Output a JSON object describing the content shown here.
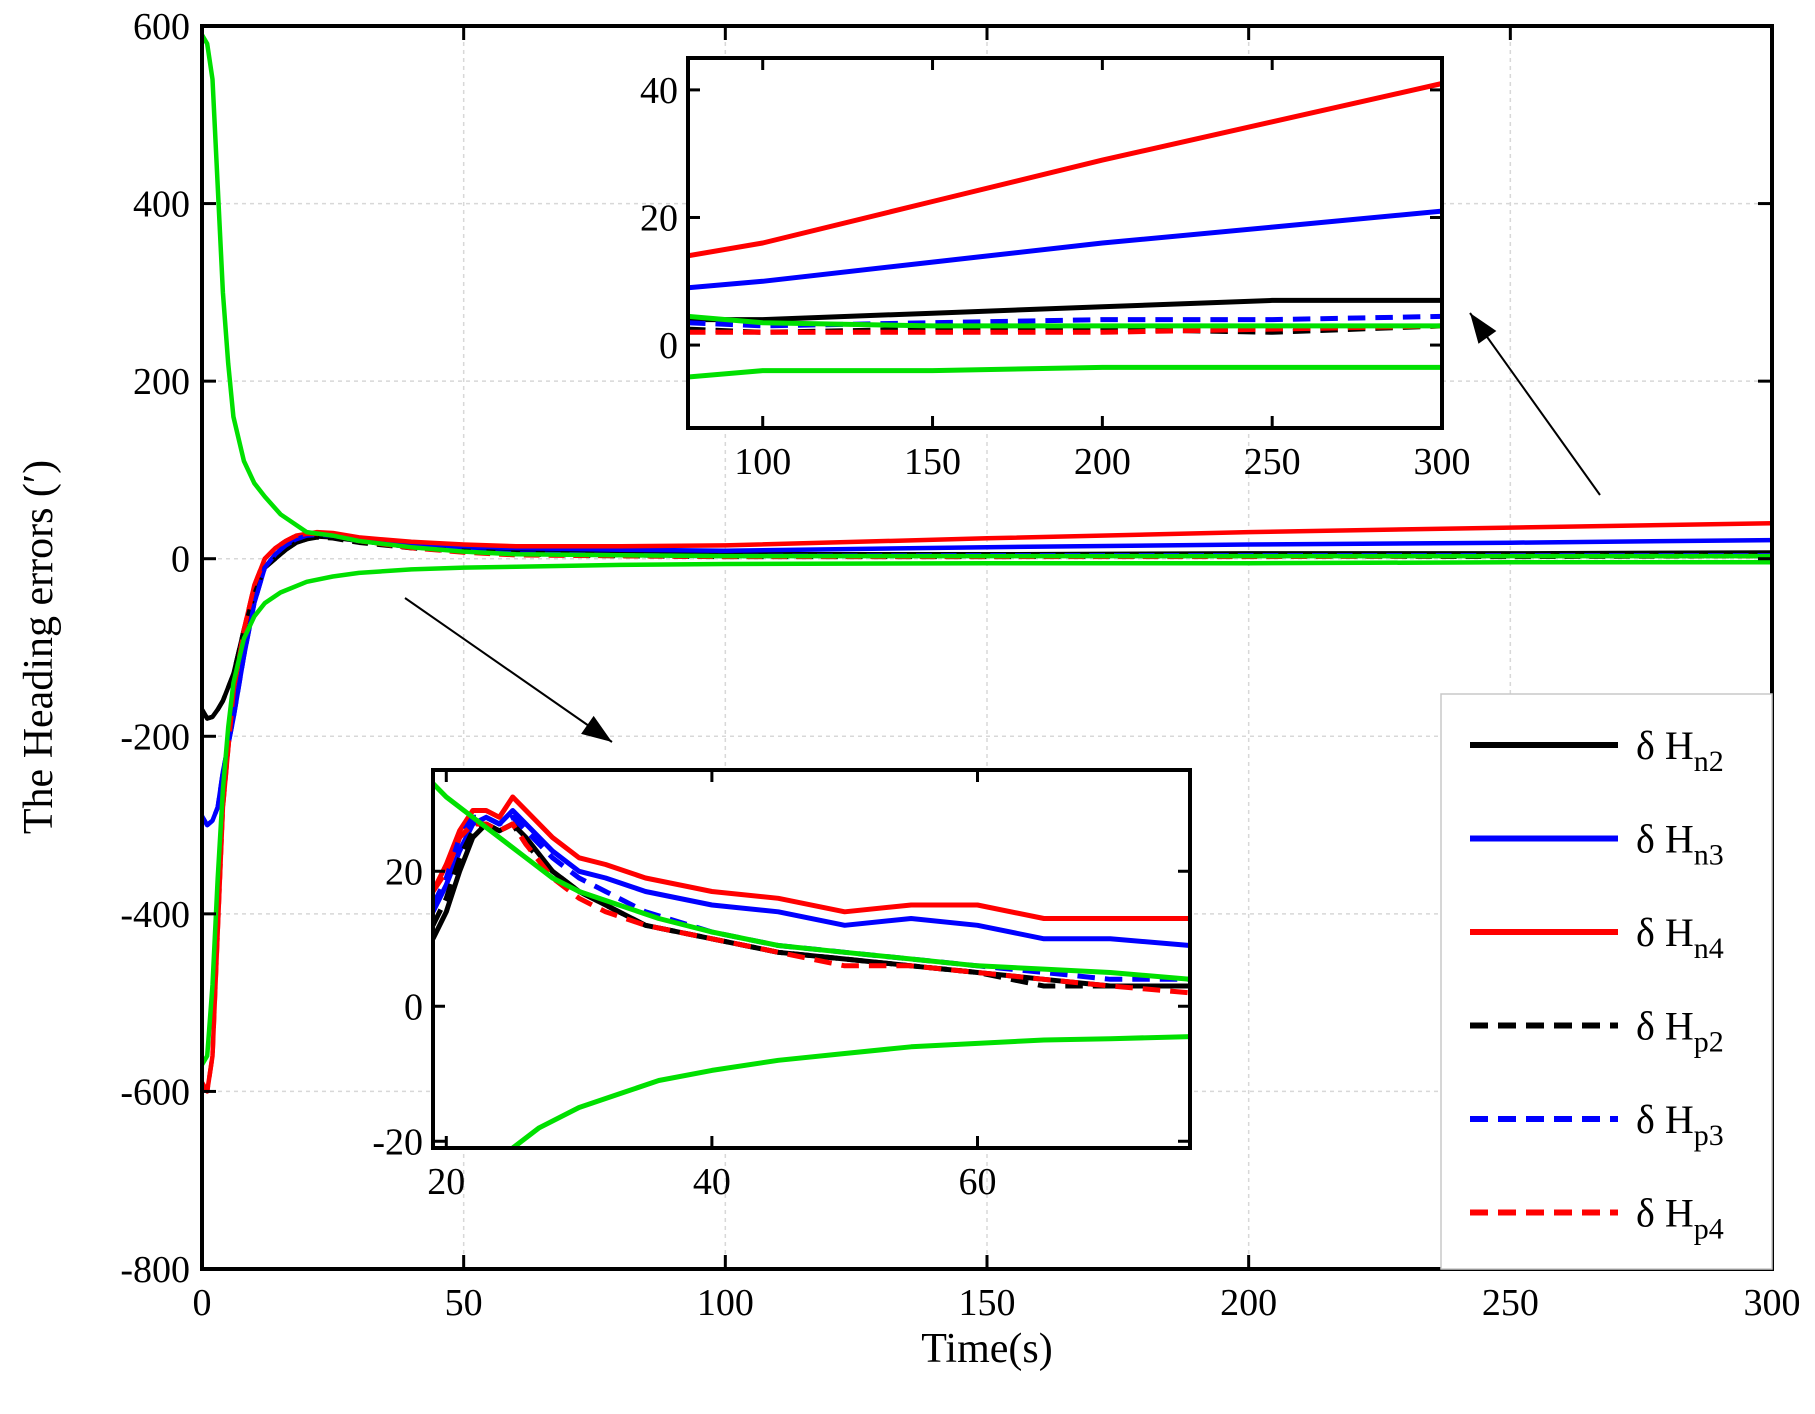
{
  "chart_data": [
    {
      "type": "line",
      "xlabel": "Time(s)",
      "ylabel": "The Heading errors (′)",
      "xlim": [
        0,
        300
      ],
      "ylim": [
        -800,
        600
      ],
      "xticks": [
        0,
        50,
        100,
        150,
        200,
        250,
        300
      ],
      "yticks": [
        -800,
        -600,
        -400,
        -200,
        0,
        200,
        400,
        600
      ],
      "grid": true,
      "legend_position": "bottom-right",
      "series": [
        {
          "name": "n2",
          "color": "#000000",
          "dash": "solid",
          "x": [
            0,
            1,
            2,
            3,
            4,
            6,
            8,
            10,
            12,
            14,
            16,
            18,
            20,
            22,
            25,
            30,
            40,
            50,
            60,
            80,
            100,
            150,
            200,
            250,
            300
          ],
          "y": [
            -170,
            -180,
            -178,
            -170,
            -160,
            -130,
            -80,
            -40,
            -10,
            0,
            10,
            18,
            22,
            25,
            24,
            20,
            15,
            12,
            8,
            6,
            5,
            5,
            6,
            6,
            7
          ]
        },
        {
          "name": "n3",
          "color": "#0000ff",
          "dash": "solid",
          "x": [
            0,
            1,
            2,
            3,
            4,
            6,
            8,
            10,
            12,
            14,
            16,
            18,
            20,
            22,
            25,
            30,
            40,
            50,
            60,
            80,
            100,
            150,
            200,
            250,
            300
          ],
          "y": [
            -290,
            -300,
            -295,
            -280,
            -240,
            -180,
            -110,
            -50,
            -10,
            5,
            15,
            22,
            26,
            28,
            27,
            22,
            17,
            14,
            12,
            10,
            9,
            13,
            16,
            18,
            21
          ]
        },
        {
          "name": "n4",
          "color": "#ff0000",
          "dash": "solid",
          "x": [
            0,
            1,
            2,
            3,
            4,
            6,
            8,
            10,
            12,
            14,
            16,
            18,
            20,
            22,
            25,
            30,
            40,
            50,
            60,
            80,
            100,
            150,
            200,
            250,
            300
          ],
          "y": [
            -590,
            -600,
            -560,
            -420,
            -280,
            -150,
            -80,
            -30,
            0,
            12,
            20,
            26,
            28,
            30,
            29,
            24,
            19,
            16,
            14,
            14,
            15,
            23,
            30,
            35,
            40
          ]
        },
        {
          "name": "p2",
          "color": "#000000",
          "dash": "dashed",
          "x": [
            0,
            1,
            2,
            3,
            4,
            6,
            8,
            10,
            12,
            14,
            16,
            18,
            20,
            22,
            25,
            30,
            40,
            50,
            60,
            80,
            100,
            150,
            200,
            250,
            300
          ],
          "y": [
            -170,
            -180,
            -178,
            -170,
            -160,
            -130,
            -80,
            -40,
            -10,
            0,
            10,
            18,
            22,
            24,
            23,
            18,
            12,
            8,
            5,
            3,
            2,
            2,
            3,
            2,
            3
          ]
        },
        {
          "name": "p3",
          "color": "#0000ff",
          "dash": "dashed",
          "x": [
            0,
            1,
            2,
            3,
            4,
            6,
            8,
            10,
            12,
            14,
            16,
            18,
            20,
            22,
            25,
            30,
            40,
            50,
            60,
            80,
            100,
            150,
            200,
            250,
            300
          ],
          "y": [
            -290,
            -300,
            -295,
            -280,
            -240,
            -180,
            -110,
            -50,
            -10,
            5,
            15,
            22,
            26,
            27,
            26,
            20,
            13,
            9,
            6,
            4,
            3,
            4,
            4,
            4,
            4
          ]
        },
        {
          "name": "p4",
          "color": "#ff0000",
          "dash": "dashed",
          "x": [
            0,
            1,
            2,
            3,
            4,
            6,
            8,
            10,
            12,
            14,
            16,
            18,
            20,
            22,
            25,
            30,
            40,
            50,
            60,
            80,
            100,
            150,
            200,
            250,
            300
          ],
          "y": [
            -590,
            -600,
            -560,
            -420,
            -280,
            -150,
            -80,
            -30,
            0,
            12,
            20,
            26,
            28,
            28,
            27,
            20,
            12,
            7,
            4,
            3,
            2,
            2,
            2,
            3,
            3
          ]
        },
        {
          "color": "#00e000",
          "dash": "solid",
          "x": [
            0,
            1,
            2,
            3,
            4,
            5,
            6,
            8,
            10,
            12,
            15,
            20,
            25,
            30,
            40,
            50,
            60,
            80,
            100,
            150,
            200,
            250,
            300
          ],
          "y": [
            590,
            580,
            540,
            420,
            300,
            220,
            160,
            110,
            85,
            70,
            50,
            30,
            26,
            20,
            13,
            8,
            5,
            4,
            3,
            3,
            3,
            3,
            3
          ]
        },
        {
          "color": "#00e000",
          "dash": "solid",
          "x": [
            0,
            1,
            2,
            3,
            4,
            5,
            6,
            8,
            10,
            12,
            15,
            20,
            25,
            30,
            40,
            50,
            60,
            80,
            100,
            150,
            200,
            250,
            300
          ],
          "y": [
            -570,
            -560,
            -480,
            -360,
            -260,
            -190,
            -140,
            -90,
            -65,
            -50,
            -38,
            -26,
            -20,
            -16,
            -12,
            -10,
            -9,
            -7,
            -6,
            -5,
            -5,
            -4,
            -4
          ]
        }
      ],
      "annotations": [
        "arrow-to-top-inset",
        "arrow-to-bottom-inset"
      ]
    },
    {
      "type": "line",
      "name": "inset-late",
      "xlim": [
        78,
        300
      ],
      "ylim": [
        -13,
        45
      ],
      "xticks": [
        100,
        150,
        200,
        250,
        300
      ],
      "yticks": [
        0,
        20,
        40
      ],
      "series": [
        {
          "name": "n2",
          "color": "#000000",
          "dash": "solid",
          "x": [
            78,
            100,
            150,
            200,
            250,
            300
          ],
          "y": [
            4,
            4,
            5,
            6,
            7,
            7
          ]
        },
        {
          "name": "n3",
          "color": "#0000ff",
          "dash": "solid",
          "x": [
            78,
            100,
            150,
            200,
            250,
            300
          ],
          "y": [
            9,
            10,
            13,
            16,
            18.5,
            21
          ]
        },
        {
          "name": "n4",
          "color": "#ff0000",
          "dash": "solid",
          "x": [
            78,
            100,
            150,
            200,
            250,
            300
          ],
          "y": [
            14,
            16,
            22.5,
            29,
            35,
            41
          ]
        },
        {
          "name": "p2",
          "color": "#000000",
          "dash": "dashed",
          "x": [
            78,
            100,
            150,
            200,
            250,
            300
          ],
          "y": [
            2.5,
            2,
            2.5,
            2.5,
            2,
            3
          ]
        },
        {
          "name": "p3",
          "color": "#0000ff",
          "dash": "dashed",
          "x": [
            78,
            100,
            150,
            200,
            250,
            300
          ],
          "y": [
            3.5,
            3,
            3.5,
            4,
            4,
            4.5
          ]
        },
        {
          "name": "p4",
          "color": "#ff0000",
          "dash": "dashed",
          "x": [
            78,
            100,
            150,
            200,
            250,
            300
          ],
          "y": [
            2,
            2,
            2,
            2,
            2.5,
            3
          ]
        },
        {
          "color": "#00e000",
          "dash": "solid",
          "x": [
            78,
            100,
            150,
            200,
            250,
            300
          ],
          "y": [
            4.5,
            3.5,
            3,
            3,
            3,
            3
          ]
        },
        {
          "color": "#00e000",
          "dash": "solid",
          "x": [
            78,
            100,
            150,
            200,
            250,
            300
          ],
          "y": [
            -5,
            -4,
            -4,
            -3.5,
            -3.5,
            -3.5
          ]
        }
      ]
    },
    {
      "type": "line",
      "name": "inset-early",
      "xlim": [
        19,
        76
      ],
      "ylim": [
        -21,
        35
      ],
      "xticks": [
        20,
        40,
        60
      ],
      "yticks": [
        -20,
        0,
        20
      ],
      "series": [
        {
          "name": "n2",
          "color": "#000000",
          "dash": "solid",
          "x": [
            19,
            20,
            21,
            22,
            23,
            24,
            25,
            26,
            28,
            30,
            32,
            35,
            40,
            45,
            50,
            55,
            60,
            65,
            70,
            76
          ],
          "y": [
            10,
            14,
            20,
            25,
            27,
            26,
            27,
            25,
            20,
            17,
            15,
            12,
            10,
            8,
            7,
            6,
            5,
            4,
            3,
            3
          ]
        },
        {
          "name": "n3",
          "color": "#0000ff",
          "dash": "solid",
          "x": [
            19,
            20,
            21,
            22,
            23,
            24,
            25,
            26,
            28,
            30,
            32,
            35,
            40,
            45,
            50,
            55,
            60,
            65,
            70,
            76
          ],
          "y": [
            14,
            18,
            23,
            27,
            28,
            27,
            29,
            27,
            23,
            20,
            19,
            17,
            15,
            14,
            12,
            13,
            12,
            10,
            10,
            9
          ]
        },
        {
          "name": "n4",
          "color": "#ff0000",
          "dash": "solid",
          "x": [
            19,
            20,
            21,
            22,
            23,
            24,
            25,
            26,
            28,
            30,
            32,
            35,
            40,
            45,
            50,
            55,
            60,
            65,
            70,
            76
          ],
          "y": [
            17,
            21,
            26,
            29,
            29,
            28,
            31,
            29,
            25,
            22,
            21,
            19,
            17,
            16,
            14,
            15,
            15,
            13,
            13,
            13
          ]
        },
        {
          "name": "p2",
          "color": "#000000",
          "dash": "dashed",
          "x": [
            19,
            20,
            21,
            22,
            23,
            24,
            25,
            26,
            28,
            30,
            32,
            35,
            40,
            45,
            50,
            55,
            60,
            65,
            70,
            76
          ],
          "y": [
            12,
            16,
            22,
            26,
            27,
            26,
            27,
            24,
            20,
            17,
            15,
            12,
            10,
            8,
            7,
            6,
            5,
            3,
            3,
            3
          ]
        },
        {
          "name": "p3",
          "color": "#0000ff",
          "dash": "dashed",
          "x": [
            19,
            20,
            21,
            22,
            23,
            24,
            25,
            26,
            28,
            30,
            32,
            35,
            40,
            45,
            50,
            55,
            60,
            65,
            70,
            76
          ],
          "y": [
            15,
            19,
            25,
            28,
            28,
            27,
            28,
            26,
            22,
            19,
            17,
            14,
            11,
            9,
            8,
            7,
            6,
            5,
            4,
            4
          ]
        },
        {
          "name": "p4",
          "color": "#ff0000",
          "dash": "dashed",
          "x": [
            19,
            20,
            21,
            22,
            23,
            24,
            25,
            26,
            28,
            30,
            32,
            35,
            40,
            45,
            50,
            55,
            60,
            65,
            70,
            76
          ],
          "y": [
            17,
            20,
            25,
            27,
            27,
            26,
            27,
            24,
            19,
            16,
            14,
            12,
            10,
            8,
            6,
            6,
            5,
            4,
            3,
            2
          ]
        },
        {
          "color": "#00e000",
          "dash": "solid",
          "x": [
            19,
            20,
            22,
            24,
            26,
            28,
            30,
            33,
            36,
            40,
            45,
            50,
            55,
            60,
            65,
            70,
            76
          ],
          "y": [
            33,
            31,
            28,
            25,
            22,
            19,
            17,
            15,
            13,
            11,
            9,
            8,
            7,
            6,
            5.5,
            5,
            4
          ]
        },
        {
          "color": "#00e000",
          "dash": "solid",
          "x": [
            25,
            27,
            30,
            33,
            36,
            40,
            45,
            50,
            55,
            60,
            65,
            70,
            76
          ],
          "y": [
            -21,
            -18,
            -15,
            -13,
            -11,
            -9.5,
            -8,
            -7,
            -6,
            -5.5,
            -5,
            -4.8,
            -4.5
          ]
        }
      ]
    }
  ],
  "legend": [
    {
      "prefix": "δ H",
      "sub": "n2"
    },
    {
      "prefix": "δ H",
      "sub": "n3"
    },
    {
      "prefix": "δ H",
      "sub": "n4"
    },
    {
      "prefix": "δ H",
      "sub": "p2"
    },
    {
      "prefix": "δ H",
      "sub": "p3"
    },
    {
      "prefix": "δ H",
      "sub": "p4"
    }
  ]
}
